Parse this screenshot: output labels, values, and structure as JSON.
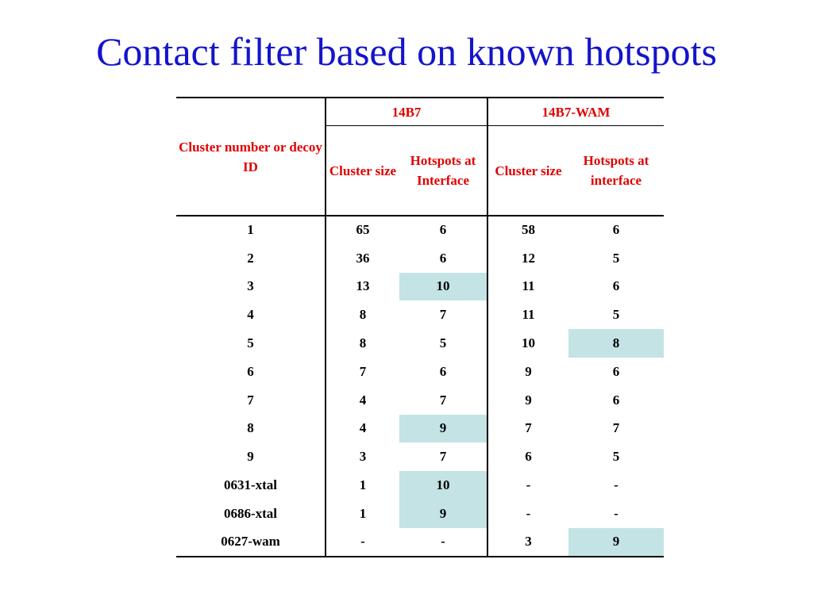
{
  "slide": {
    "title": "Contact filter based on known hotspots"
  },
  "table": {
    "row_header": "Cluster number or decoy ID",
    "groups": [
      {
        "label": "14B7",
        "subheaders": [
          "Cluster size",
          "Hotspots at Interface"
        ]
      },
      {
        "label": "14B7-WAM",
        "subheaders": [
          "Cluster size",
          "Hotspots at interface"
        ]
      }
    ],
    "highlight_color": "#c4e3e4",
    "header_color": "#e00000",
    "rows": [
      {
        "id": "1",
        "cells": [
          "65",
          "6",
          "58",
          "6"
        ],
        "highlight": []
      },
      {
        "id": "2",
        "cells": [
          "36",
          "6",
          "12",
          "5"
        ],
        "highlight": []
      },
      {
        "id": "3",
        "cells": [
          "13",
          "10",
          "11",
          "6"
        ],
        "highlight": [
          1
        ]
      },
      {
        "id": "4",
        "cells": [
          "8",
          "7",
          "11",
          "5"
        ],
        "highlight": []
      },
      {
        "id": "5",
        "cells": [
          "8",
          "5",
          "10",
          "8"
        ],
        "highlight": [
          3
        ]
      },
      {
        "id": "6",
        "cells": [
          "7",
          "6",
          "9",
          "6"
        ],
        "highlight": []
      },
      {
        "id": "7",
        "cells": [
          "4",
          "7",
          "9",
          "6"
        ],
        "highlight": []
      },
      {
        "id": "8",
        "cells": [
          "4",
          "9",
          "7",
          "7"
        ],
        "highlight": [
          1
        ]
      },
      {
        "id": "9",
        "cells": [
          "3",
          "7",
          "6",
          "5"
        ],
        "highlight": []
      },
      {
        "id": "0631-xtal",
        "cells": [
          "1",
          "10",
          "-",
          "-"
        ],
        "highlight": [
          1
        ]
      },
      {
        "id": "0686-xtal",
        "cells": [
          "1",
          "9",
          "-",
          "-"
        ],
        "highlight": [
          1
        ]
      },
      {
        "id": "0627-wam",
        "cells": [
          "-",
          "-",
          "3",
          "9"
        ],
        "highlight": [
          3
        ]
      }
    ]
  }
}
